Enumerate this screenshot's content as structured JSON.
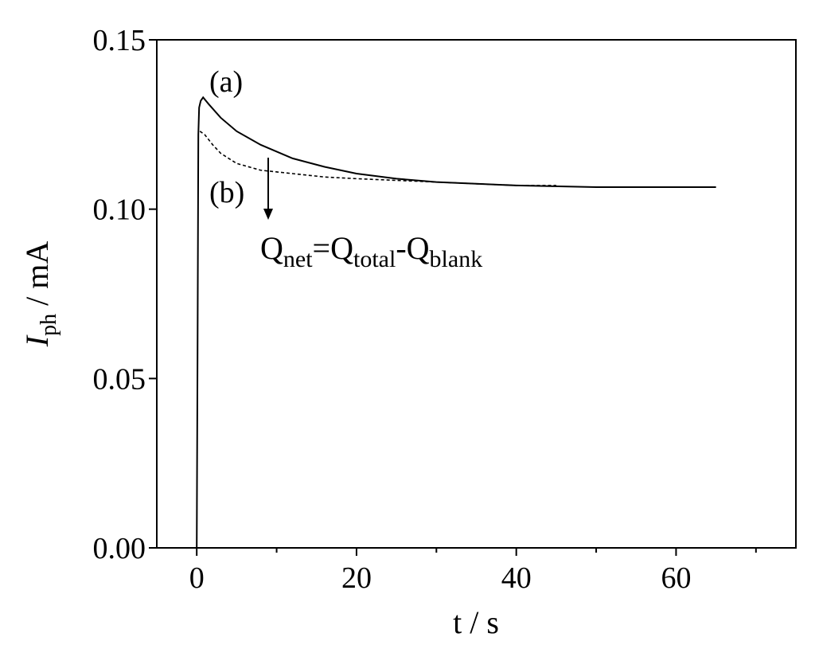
{
  "chart_data": {
    "type": "line",
    "xlabel": "t / s",
    "ylabel": [
      {
        "text": "I",
        "italic": true
      },
      {
        "text": "ph",
        "sub": true
      },
      {
        "text": " / mA"
      }
    ],
    "xlim": [
      -5,
      75
    ],
    "xticks": [
      0,
      20,
      40,
      60
    ],
    "xminorticks": [
      10,
      30,
      50,
      70
    ],
    "ylim": [
      0,
      0.15
    ],
    "yticks": [
      {
        "value": 0,
        "label": "0.00"
      },
      {
        "value": 0.05,
        "label": "0.05"
      },
      {
        "value": 0.1,
        "label": "0.10"
      },
      {
        "value": 0.15,
        "label": "0.15"
      }
    ],
    "series": [
      {
        "color": "#000000",
        "dash": false,
        "x": [
          0,
          0.1,
          0.2,
          0.3,
          0.5,
          0.8,
          1.5,
          3,
          5,
          8,
          12,
          16,
          20,
          25,
          30,
          35,
          40,
          50,
          60,
          65
        ],
        "values": [
          0,
          0.057,
          0.122,
          0.13,
          0.132,
          0.133,
          0.131,
          0.127,
          0.123,
          0.119,
          0.115,
          0.1125,
          0.1105,
          0.109,
          0.108,
          0.1075,
          0.107,
          0.1065,
          0.1065,
          0.1065
        ]
      },
      {
        "color": "#000000",
        "dash": true,
        "x": [
          0.4,
          1,
          2,
          3,
          5,
          8,
          12,
          16,
          20,
          25,
          30,
          35,
          40,
          45
        ],
        "values": [
          0.123,
          0.122,
          0.119,
          0.1165,
          0.1135,
          0.1115,
          0.1105,
          0.1095,
          0.109,
          0.1085,
          0.108,
          0.1075,
          0.107,
          0.107
        ]
      }
    ],
    "annotations": [
      "(a)",
      "(b)"
    ],
    "formula": [
      {
        "text": "Q"
      },
      {
        "text": "net",
        "sub": true
      },
      {
        "text": "=Q"
      },
      {
        "text": "total",
        "sub": true
      },
      {
        "text": "-Q"
      },
      {
        "text": "blank",
        "sub": true
      }
    ]
  }
}
